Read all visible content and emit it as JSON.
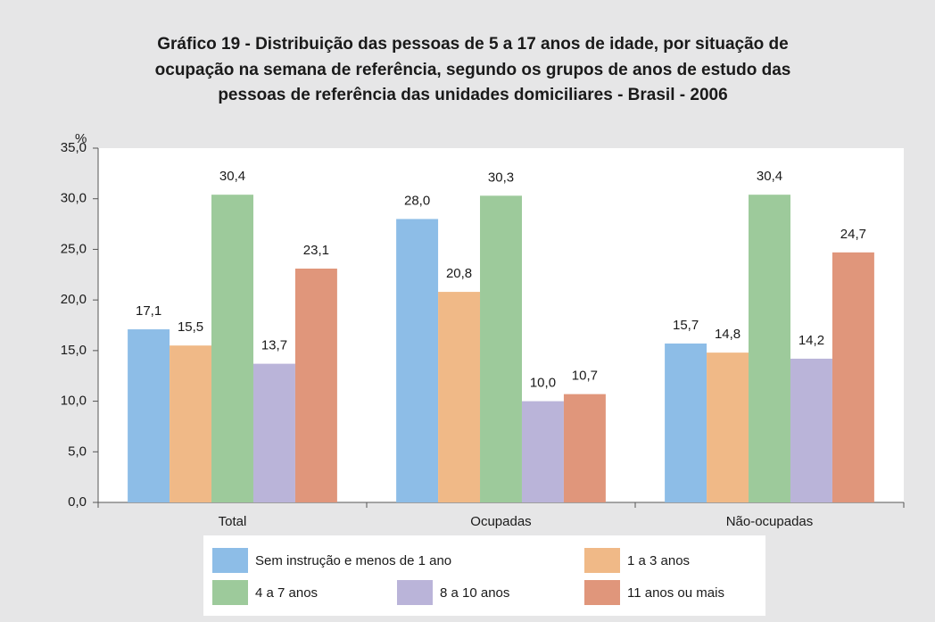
{
  "chart_data": {
    "type": "bar",
    "title": [
      "Gráfico 19 - Distribuição das pessoas de 5 a 17 anos de idade, por situação de",
      "ocupação na semana de referência, segundo os grupos de anos de estudo das",
      "pessoas de referência das unidades domiciliares - Brasil - 2006"
    ],
    "y_label": "%",
    "categories": [
      "Total",
      "Ocupadas",
      "Não-ocupadas"
    ],
    "series": [
      {
        "name": "Sem instrução e menos de 1 ano",
        "color": "#8dbde7",
        "values": [
          17.1,
          28.0,
          15.7
        ],
        "value_labels": [
          "17,1",
          "28,0",
          "15,7"
        ]
      },
      {
        "name": "1 a 3 anos",
        "color": "#f0b987",
        "values": [
          15.5,
          20.8,
          14.8
        ],
        "value_labels": [
          "15,5",
          "20,8",
          "14,8"
        ]
      },
      {
        "name": "4 a 7 anos",
        "color": "#9dca9b",
        "values": [
          30.4,
          30.3,
          30.4
        ],
        "value_labels": [
          "30,4",
          "30,3",
          "30,4"
        ]
      },
      {
        "name": "8 a 10 anos",
        "color": "#bab4d9",
        "values": [
          13.7,
          10.0,
          14.2
        ],
        "value_labels": [
          "13,7",
          "10,0",
          "14,2"
        ]
      },
      {
        "name": "11 anos ou mais",
        "color": "#e0967b",
        "values": [
          23.1,
          10.7,
          24.7
        ],
        "value_labels": [
          "23,1",
          "10,7",
          "24,7"
        ]
      }
    ],
    "ylim": [
      0,
      35
    ],
    "yticks": [
      {
        "value": 0,
        "label": "0,0"
      },
      {
        "value": 5,
        "label": "5,0"
      },
      {
        "value": 10,
        "label": "10,0"
      },
      {
        "value": 15,
        "label": "15,0"
      },
      {
        "value": 20,
        "label": "20,0"
      },
      {
        "value": 25,
        "label": "25,0"
      },
      {
        "value": 30,
        "label": "30,0"
      },
      {
        "value": 35,
        "label": "35,0"
      }
    ]
  }
}
